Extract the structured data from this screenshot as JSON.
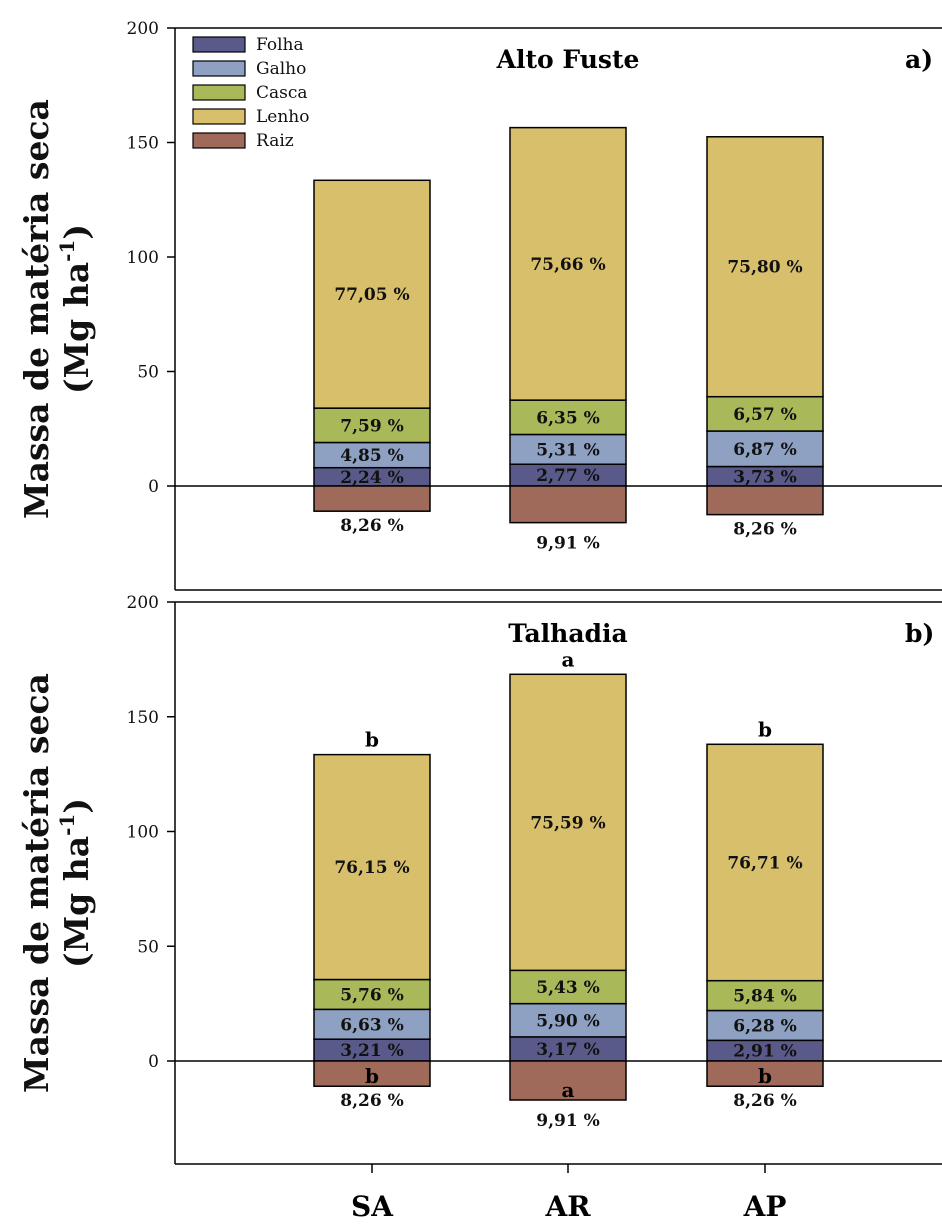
{
  "chart_data": [
    {
      "type": "bar",
      "stacked": true,
      "title": "Alto Fuste",
      "panel_label": "a)",
      "ylabel": "Massa de matéria seca",
      "ylabel_units": "(Mg ha",
      "ylabel_exp": "-1",
      "ylabel_close": ")",
      "ylim": [
        -40,
        200
      ],
      "yticks": [
        0,
        50,
        100,
        150,
        200
      ],
      "categories": [
        "SA",
        "AR",
        "AP"
      ],
      "legend": {
        "position": "top-left",
        "items": [
          "Folha",
          "Galho",
          "Casca",
          "Lenho",
          "Raiz"
        ]
      },
      "series": [
        {
          "name": "Folha",
          "color": "#5a5a8a",
          "values": [
            8,
            9.5,
            8.5
          ],
          "labels": [
            "2,24 %",
            "2,77 %",
            "3,73 %"
          ]
        },
        {
          "name": "Galho",
          "color": "#8ea1c2",
          "values": [
            11,
            13,
            15.5
          ],
          "labels": [
            "4,85 %",
            "5,31 %",
            "6,87 %"
          ]
        },
        {
          "name": "Casca",
          "color": "#a9b95a",
          "values": [
            15,
            15,
            15
          ],
          "labels": [
            "7,59 %",
            "6,35 %",
            "6,57 %"
          ]
        },
        {
          "name": "Lenho",
          "color": "#d7bf6b",
          "values": [
            99.5,
            119,
            113.5
          ],
          "labels": [
            "77,05 %",
            "75,66 %",
            "75,80 %"
          ]
        },
        {
          "name": "Raiz",
          "color": "#a06a5a",
          "values": [
            -11,
            -16,
            -12.5
          ],
          "labels": [
            "8,26 %",
            "9,91 %",
            "8,26 %"
          ]
        }
      ],
      "top_letters": [
        "",
        "",
        ""
      ],
      "root_letters": [
        "",
        "",
        ""
      ]
    },
    {
      "type": "bar",
      "stacked": true,
      "title": "Talhadia",
      "panel_label": "b)",
      "ylabel": "Massa de matéria seca",
      "ylabel_units": "(Mg ha",
      "ylabel_exp": "-1",
      "ylabel_close": ")",
      "ylim": [
        -40,
        200
      ],
      "yticks": [
        0,
        50,
        100,
        150,
        200
      ],
      "categories": [
        "SA",
        "AR",
        "AP"
      ],
      "series": [
        {
          "name": "Folha",
          "color": "#5a5a8a",
          "values": [
            9.5,
            10.5,
            9
          ],
          "labels": [
            "3,21 %",
            "3,17 %",
            "2,91 %"
          ]
        },
        {
          "name": "Galho",
          "color": "#8ea1c2",
          "values": [
            13,
            14.5,
            13
          ],
          "labels": [
            "6,63 %",
            "5,90 %",
            "6,28 %"
          ]
        },
        {
          "name": "Casca",
          "color": "#a9b95a",
          "values": [
            13,
            14.5,
            13
          ],
          "labels": [
            "5,76 %",
            "5,43 %",
            "5,84 %"
          ]
        },
        {
          "name": "Lenho",
          "color": "#d7bf6b",
          "values": [
            98,
            129,
            103
          ],
          "labels": [
            "76,15 %",
            "75,59 %",
            "76,71 %"
          ]
        },
        {
          "name": "Raiz",
          "color": "#a06a5a",
          "values": [
            -11,
            -17,
            -11
          ],
          "labels": [
            "8,26 %",
            "9,91 %",
            "8,26 %"
          ]
        }
      ],
      "top_letters": [
        "b",
        "a",
        "b"
      ],
      "root_letters": [
        "b",
        "a",
        "b"
      ]
    }
  ]
}
